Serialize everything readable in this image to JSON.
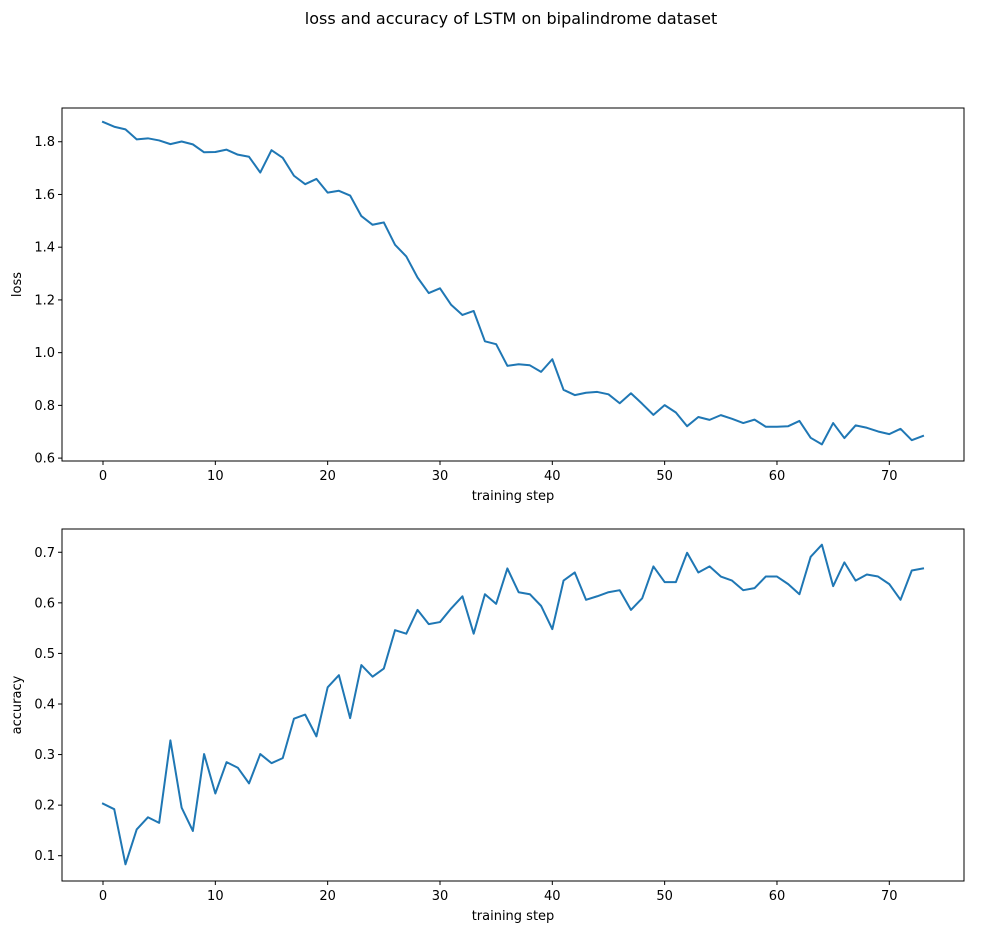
{
  "figure": {
    "suptitle": "loss and accuracy of LSTM on bipalindrome dataset"
  },
  "chart_data": [
    {
      "type": "line",
      "title": "",
      "xlabel": "training step",
      "ylabel": "loss",
      "xlim": [
        -3.65,
        76.65
      ],
      "ylim": [
        0.589,
        1.928
      ],
      "xticks": [
        0,
        10,
        20,
        30,
        40,
        50,
        60,
        70
      ],
      "yticks": [
        0.6,
        0.8,
        1.0,
        1.2,
        1.4,
        1.6,
        1.8
      ],
      "ytick_labels": [
        "0.6",
        "0.8",
        "1.0",
        "1.2",
        "1.4",
        "1.6",
        "1.8"
      ],
      "color": "#1f77b4",
      "grid": false,
      "series": [
        {
          "values": [
            1.875,
            1.857,
            1.847,
            1.809,
            1.813,
            1.805,
            1.791,
            1.801,
            1.79,
            1.76,
            1.761,
            1.77,
            1.751,
            1.743,
            1.683,
            1.768,
            1.739,
            1.671,
            1.639,
            1.659,
            1.607,
            1.614,
            1.596,
            1.518,
            1.485,
            1.494,
            1.409,
            1.365,
            1.285,
            1.226,
            1.244,
            1.181,
            1.143,
            1.158,
            1.043,
            1.032,
            0.95,
            0.956,
            0.952,
            0.927,
            0.975,
            0.859,
            0.839,
            0.848,
            0.851,
            0.842,
            0.808,
            0.846,
            0.806,
            0.764,
            0.801,
            0.773,
            0.721,
            0.756,
            0.745,
            0.763,
            0.749,
            0.733,
            0.746,
            0.719,
            0.719,
            0.721,
            0.741,
            0.677,
            0.652,
            0.733,
            0.676,
            0.724,
            0.715,
            0.701,
            0.691,
            0.711,
            0.668,
            0.684
          ]
        }
      ]
    },
    {
      "type": "line",
      "title": "",
      "xlabel": "training step",
      "ylabel": "accuracy",
      "xlim": [
        -3.65,
        76.65
      ],
      "ylim": [
        0.05,
        0.746
      ],
      "xticks": [
        0,
        10,
        20,
        30,
        40,
        50,
        60,
        70
      ],
      "yticks": [
        0.1,
        0.2,
        0.3,
        0.4,
        0.5,
        0.6,
        0.7
      ],
      "ytick_labels": [
        "0.1",
        "0.2",
        "0.3",
        "0.4",
        "0.5",
        "0.6",
        "0.7"
      ],
      "color": "#1f77b4",
      "grid": false,
      "series": [
        {
          "values": [
            0.203,
            0.192,
            0.083,
            0.152,
            0.176,
            0.165,
            0.328,
            0.195,
            0.149,
            0.301,
            0.223,
            0.285,
            0.274,
            0.243,
            0.301,
            0.283,
            0.293,
            0.371,
            0.379,
            0.336,
            0.433,
            0.457,
            0.372,
            0.477,
            0.454,
            0.47,
            0.546,
            0.539,
            0.586,
            0.558,
            0.562,
            0.589,
            0.613,
            0.539,
            0.617,
            0.598,
            0.668,
            0.621,
            0.617,
            0.594,
            0.548,
            0.644,
            0.66,
            0.606,
            0.613,
            0.621,
            0.625,
            0.586,
            0.609,
            0.672,
            0.641,
            0.641,
            0.699,
            0.66,
            0.672,
            0.652,
            0.644,
            0.625,
            0.629,
            0.652,
            0.652,
            0.637,
            0.617,
            0.691,
            0.715,
            0.633,
            0.68,
            0.644,
            0.656,
            0.652,
            0.637,
            0.606,
            0.664,
            0.668
          ]
        }
      ]
    }
  ]
}
